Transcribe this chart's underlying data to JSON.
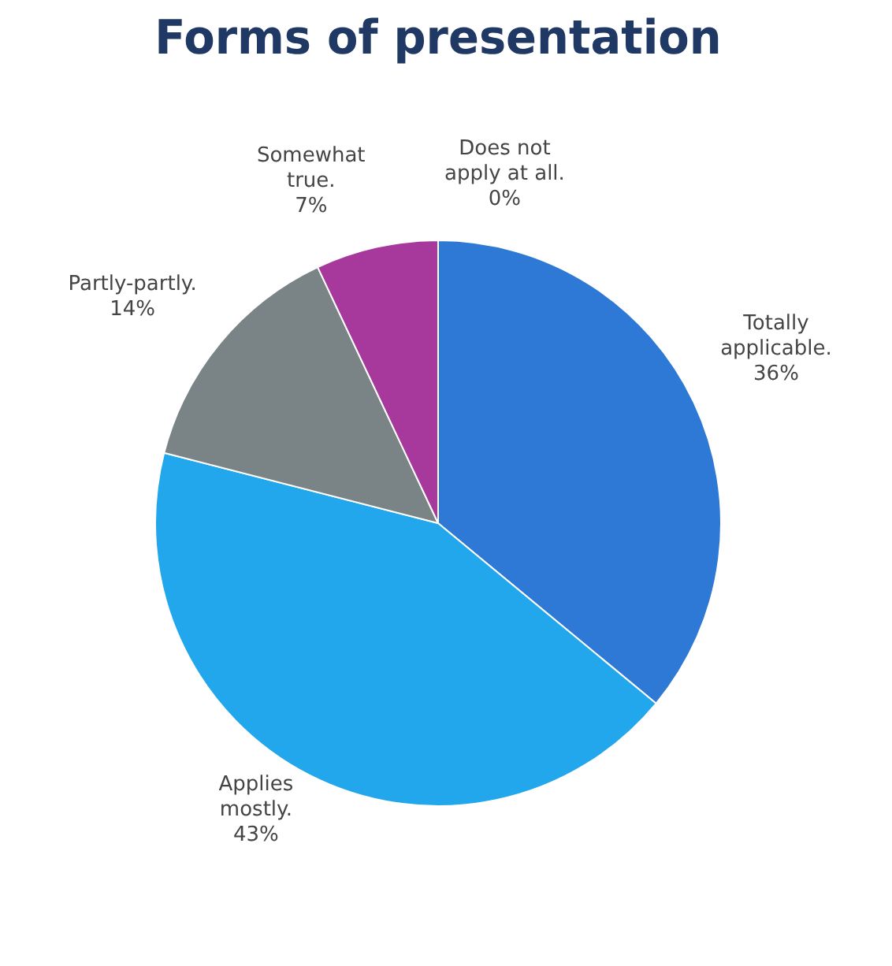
{
  "chart_data": {
    "type": "pie",
    "title": "Forms of presentation",
    "categories": [
      "Totally applicable.",
      "Applies mostly.",
      "Partly-partly.",
      "Somewhat true.",
      "Does not apply at all."
    ],
    "values": [
      36,
      43,
      14,
      7,
      0
    ],
    "colors": [
      "#2e78d6",
      "#22a6ec",
      "#7a8486",
      "#a8399c",
      "#e07b28"
    ],
    "value_labels": [
      "36%",
      "43%",
      "14%",
      "7%",
      "0%"
    ],
    "legend": false
  }
}
